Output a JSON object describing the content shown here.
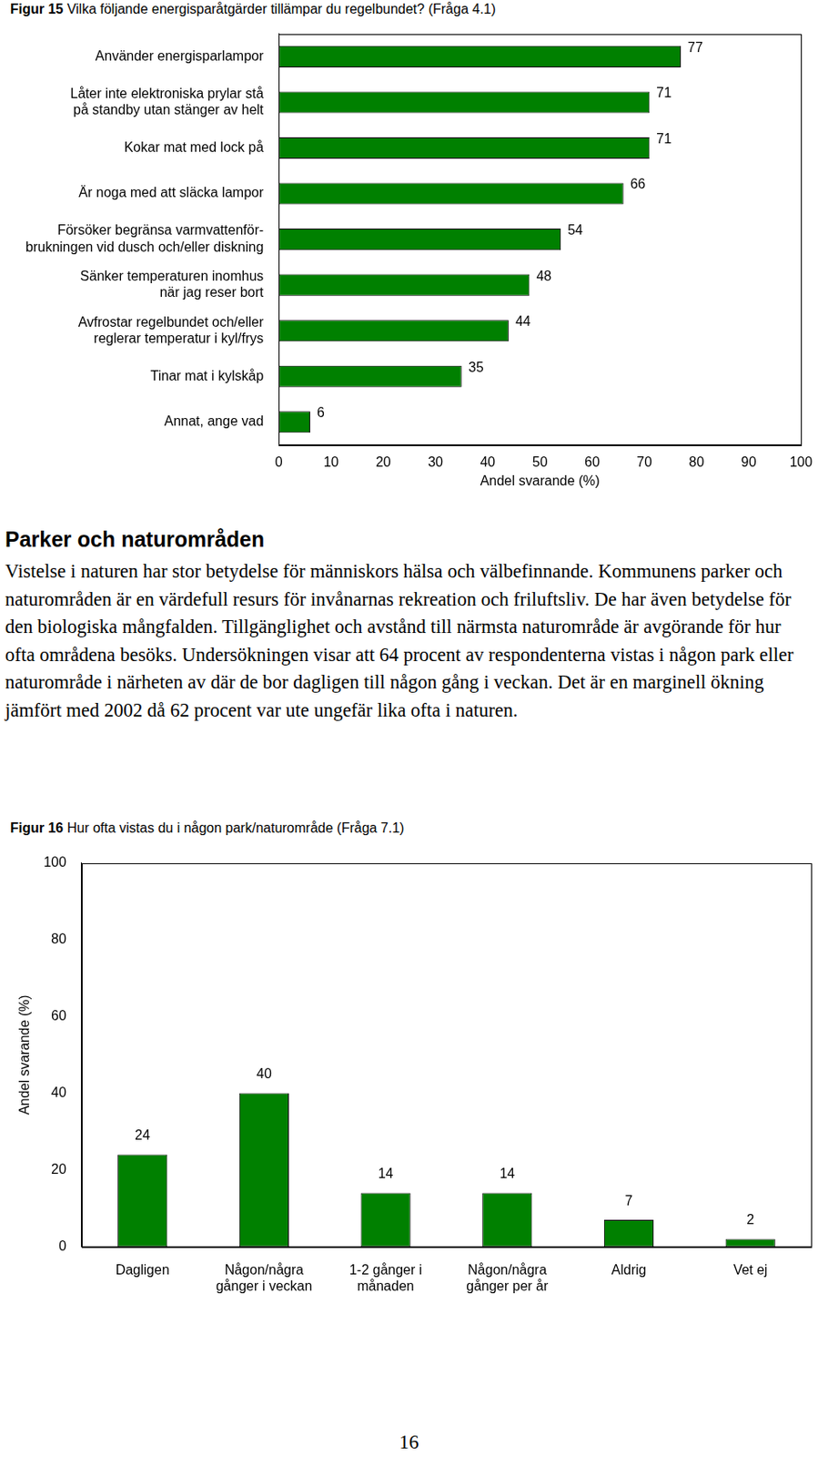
{
  "chart_data": [
    {
      "type": "bar",
      "orientation": "horizontal",
      "title": "Figur 15 Vilka följande energisparåtgärder tillämpar du regelbundet? (Fråga 4.1)",
      "x_label": "Andel svarande (%)",
      "categories": [
        "Använder energisparlampor",
        "Låter inte elektroniska prylar stå\npå standby utan stänger av helt",
        "Kokar mat med lock på",
        "Är noga med att släcka lampor",
        "Försöker begränsa varmvattenför-\nbrukningen vid dusch och/eller diskning",
        "Sänker temperaturen inomhus\nnär jag reser bort",
        "Avfrostar regelbundet och/eller\nreglerar temperatur i kyl/frys",
        "Tinar mat i kylskåp",
        "Annat, ange vad"
      ],
      "values": [
        77,
        71,
        71,
        66,
        54,
        48,
        44,
        35,
        6
      ],
      "color": "#008000",
      "xlim": [
        0,
        100
      ],
      "xticks": [
        0,
        10,
        20,
        30,
        40,
        50,
        60,
        70,
        80,
        90,
        100
      ],
      "grid": false,
      "data_labels": true
    },
    {
      "type": "bar",
      "title": "Figur 16 Hur ofta vistas du i någon park/naturområde (Fråga 7.1)",
      "y_label": "Andel svarande (%)",
      "categories": [
        "Dagligen",
        "Någon/några\ngånger i veckan",
        "1-2 gånger i\nmånaden",
        "Någon/några\ngånger per år",
        "Aldrig",
        "Vet ej"
      ],
      "values": [
        24,
        40,
        14,
        14,
        7,
        2
      ],
      "color": "#008000",
      "ylim": [
        0,
        100
      ],
      "yticks": [
        0,
        20,
        40,
        60,
        80,
        100
      ],
      "grid": false,
      "data_labels": true
    }
  ],
  "section": {
    "heading": "Parker och naturområden",
    "paragraph": "Vistelse i naturen har stor betydelse för människors hälsa och välbefinnande. Kommunens parker och naturområden är en värdefull resurs för invånarnas rekreation och friluftsliv. De har även betydelse för den biologiska mångfalden. Tillgänglighet och avstånd till närmsta naturområde är avgörande för hur ofta områdena besöks. Undersökningen visar att 64 procent av respondenterna vistas i någon park eller naturområde i närheten av där de bor dagligen till någon gång i veckan. Det är en marginell ökning jämfört med 2002 då 62 procent var ute ungefär lika ofta i naturen."
  },
  "page_number": "16"
}
